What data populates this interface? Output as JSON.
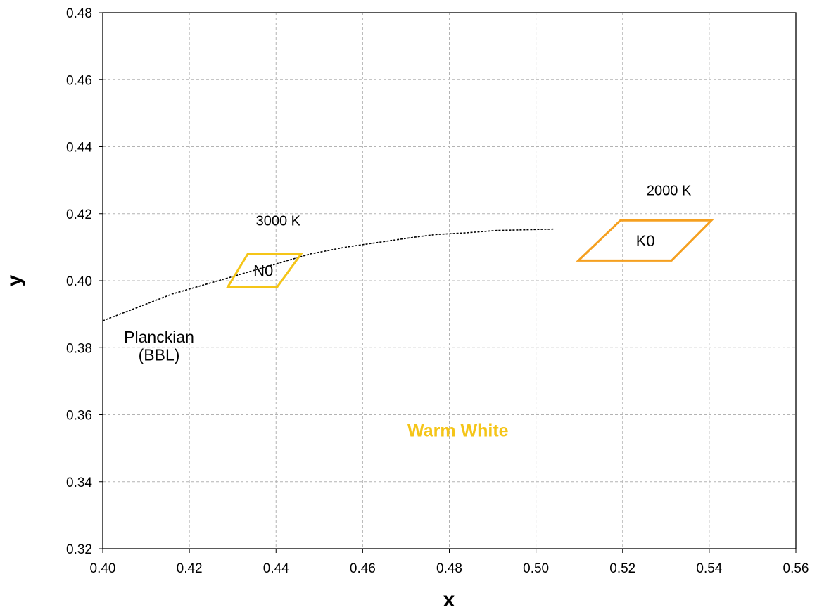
{
  "chart_data": {
    "type": "scatter",
    "title": "",
    "xlabel": "x",
    "ylabel": "y",
    "xlim": [
      0.4,
      0.56
    ],
    "ylim": [
      0.32,
      0.48
    ],
    "x_ticks": [
      "0.40",
      "0.42",
      "0.44",
      "0.46",
      "0.48",
      "0.50",
      "0.52",
      "0.54",
      "0.56"
    ],
    "y_ticks": [
      "0.48",
      "0.46",
      "0.44",
      "0.42",
      "0.40",
      "0.38",
      "0.36",
      "0.34",
      "0.32"
    ],
    "grid": true,
    "legend": "none",
    "series": [
      {
        "line_style": "dotted",
        "color": "#000000",
        "points": [
          [
            0.4,
            0.388
          ],
          [
            0.408,
            0.392
          ],
          [
            0.416,
            0.396
          ],
          [
            0.424,
            0.399
          ],
          [
            0.432,
            0.402
          ],
          [
            0.44,
            0.405
          ],
          [
            0.448,
            0.408
          ],
          [
            0.456,
            0.41
          ],
          [
            0.464,
            0.4115
          ],
          [
            0.472,
            0.413
          ],
          [
            0.477,
            0.4138
          ],
          [
            0.484,
            0.4143
          ],
          [
            0.491,
            0.415
          ],
          [
            0.498,
            0.4152
          ],
          [
            0.504,
            0.4154
          ]
        ]
      }
    ],
    "regions": [
      {
        "label": "N0",
        "color": "#F5C518",
        "vertices": [
          [
            0.4288,
            0.398
          ],
          [
            0.4402,
            0.398
          ],
          [
            0.4458,
            0.408
          ],
          [
            0.4335,
            0.408
          ]
        ]
      },
      {
        "label": "K0",
        "color": "#F5A020",
        "vertices": [
          [
            0.5098,
            0.406
          ],
          [
            0.5313,
            0.406
          ],
          [
            0.5405,
            0.418
          ],
          [
            0.5195,
            0.418
          ]
        ]
      }
    ],
    "annotations": [
      {
        "id": "t3000",
        "text": "3000 K",
        "x": 0.4405,
        "y": 0.4165
      },
      {
        "id": "t2000",
        "text": "2000 K",
        "x": 0.5307,
        "y": 0.4255
      },
      {
        "id": "planck1",
        "text": "Planckian",
        "x": 0.413,
        "y": 0.3815
      },
      {
        "id": "planck2",
        "text": "(BBL)",
        "x": 0.413,
        "y": 0.3762
      },
      {
        "id": "warm",
        "text": "Warm White",
        "x": 0.482,
        "y": 0.3535,
        "color": "#F5C518"
      }
    ]
  }
}
